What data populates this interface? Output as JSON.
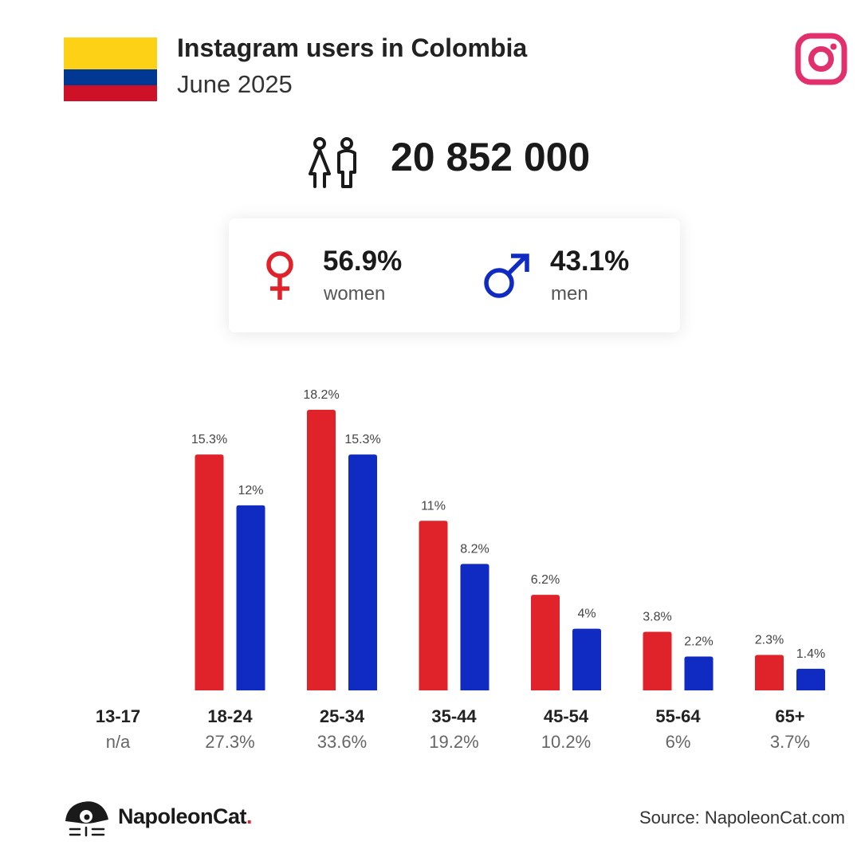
{
  "header": {
    "title": "Instagram users in Colombia",
    "subtitle": "June 2025"
  },
  "flag": {
    "country": "Colombia",
    "colors": [
      "#FCD116",
      "#003893",
      "#CE1126"
    ]
  },
  "total_users": {
    "icon": "users-icon",
    "value": "20 852 000"
  },
  "gender": {
    "women": {
      "percent": "56.9%",
      "label": "women",
      "icon": "female-symbol-icon",
      "color": "#E0232A"
    },
    "men": {
      "percent": "43.1%",
      "label": "men",
      "icon": "male-symbol-icon",
      "color": "#0F2BC2"
    }
  },
  "chart_data": {
    "type": "bar",
    "categories": [
      "13-17",
      "18-24",
      "25-34",
      "35-44",
      "45-54",
      "55-64",
      "65+"
    ],
    "category_totals": [
      "n/a",
      "27.3%",
      "33.6%",
      "19.2%",
      "10.2%",
      "6%",
      "3.7%"
    ],
    "series": [
      {
        "name": "women",
        "color": "#E0232A",
        "values": [
          null,
          15.3,
          18.2,
          11,
          6.2,
          3.8,
          2.3
        ],
        "labels": [
          null,
          "15.3%",
          "18.2%",
          "11%",
          "6.2%",
          "3.8%",
          "2.3%"
        ]
      },
      {
        "name": "men",
        "color": "#0F2BC2",
        "values": [
          null,
          12,
          15.3,
          8.2,
          4,
          2.2,
          1.4
        ],
        "labels": [
          null,
          "12%",
          "15.3%",
          "8.2%",
          "4%",
          "2.2%",
          "1.4%"
        ]
      }
    ],
    "ylim": [
      0,
      18.2
    ],
    "grid": false,
    "legend": "none"
  },
  "footer": {
    "brand_prefix": "NapoleonCat",
    "brand_dot": ".",
    "logo_icon": "napoleoncat-logo-icon",
    "source": "Source: NapoleonCat.com"
  },
  "accent_colors": {
    "instagram": "#E1306C",
    "women": "#E0232A",
    "men": "#0F2BC2"
  }
}
